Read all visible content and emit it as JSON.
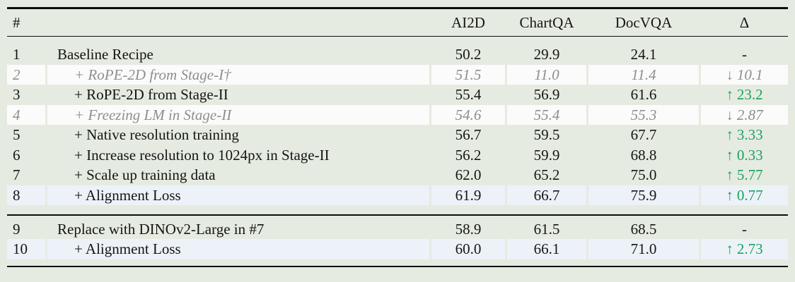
{
  "colors": {
    "page_bg": "#e6ebe1",
    "band_white": "#fbfbfb",
    "band_blue": "#edf2f9",
    "rule": "#0c0c0c",
    "text": "#151515",
    "muted_gray": "#8e8e8e",
    "delta_up_green": "#1ca25f"
  },
  "table": {
    "header": {
      "num": "#",
      "recipe": "",
      "ai2d": "AI2D",
      "chartqa": "ChartQA",
      "docvqa": "DocVQA",
      "delta": "Δ"
    },
    "groups": [
      {
        "rows": [
          {
            "num": "1",
            "recipe": "Baseline Recipe",
            "indent": false,
            "muted": false,
            "band": null,
            "ai2d": "50.2",
            "chartqa": "29.9",
            "docvqa": "24.1",
            "delta": {
              "arrow": "",
              "value": "-",
              "tone": "none"
            }
          },
          {
            "num": "2",
            "recipe": "+ RoPE-2D from Stage-I†",
            "indent": true,
            "muted": true,
            "band": "white",
            "ai2d": "51.5",
            "chartqa": "11.0",
            "docvqa": "11.4",
            "delta": {
              "arrow": "↓",
              "value": "10.1",
              "tone": "down"
            }
          },
          {
            "num": "3",
            "recipe": "+ RoPE-2D from Stage-II",
            "indent": true,
            "muted": false,
            "band": null,
            "ai2d": "55.4",
            "chartqa": "56.9",
            "docvqa": "61.6",
            "delta": {
              "arrow": "↑",
              "value": "23.2",
              "tone": "up"
            }
          },
          {
            "num": "4",
            "recipe": "+ Freezing LM in Stage-II",
            "indent": true,
            "muted": true,
            "band": "white",
            "ai2d": "54.6",
            "chartqa": "55.4",
            "docvqa": "55.3",
            "delta": {
              "arrow": "↓",
              "value": "2.87",
              "tone": "down"
            }
          },
          {
            "num": "5",
            "recipe": "+ Native resolution training",
            "indent": true,
            "muted": false,
            "band": null,
            "ai2d": "56.7",
            "chartqa": "59.5",
            "docvqa": "67.7",
            "delta": {
              "arrow": "↑",
              "value": "3.33",
              "tone": "up"
            }
          },
          {
            "num": "6",
            "recipe": "+ Increase resolution to 1024px in Stage-II",
            "indent": true,
            "muted": false,
            "band": null,
            "ai2d": "56.2",
            "chartqa": "59.9",
            "docvqa": "68.8",
            "delta": {
              "arrow": "↑",
              "value": "0.33",
              "tone": "up"
            }
          },
          {
            "num": "7",
            "recipe": "+ Scale up training data",
            "indent": true,
            "muted": false,
            "band": null,
            "ai2d": "62.0",
            "chartqa": "65.2",
            "docvqa": "75.0",
            "delta": {
              "arrow": "↑",
              "value": "5.77",
              "tone": "up"
            }
          },
          {
            "num": "8",
            "recipe": "+ Alignment Loss",
            "indent": true,
            "muted": false,
            "band": "blue",
            "ai2d": "61.9",
            "chartqa": "66.7",
            "docvqa": "75.9",
            "delta": {
              "arrow": "↑",
              "value": "0.77",
              "tone": "up"
            }
          }
        ]
      },
      {
        "rows": [
          {
            "num": "9",
            "recipe": "Replace with DINOv2-Large in #7",
            "indent": false,
            "muted": false,
            "band": null,
            "ai2d": "58.9",
            "chartqa": "61.5",
            "docvqa": "68.5",
            "delta": {
              "arrow": "",
              "value": "-",
              "tone": "none"
            }
          },
          {
            "num": "10",
            "recipe": "+ Alignment Loss",
            "indent": true,
            "muted": false,
            "band": "blue",
            "ai2d": "60.0",
            "chartqa": "66.1",
            "docvqa": "71.0",
            "delta": {
              "arrow": "↑",
              "value": "2.73",
              "tone": "up"
            }
          }
        ]
      }
    ]
  }
}
